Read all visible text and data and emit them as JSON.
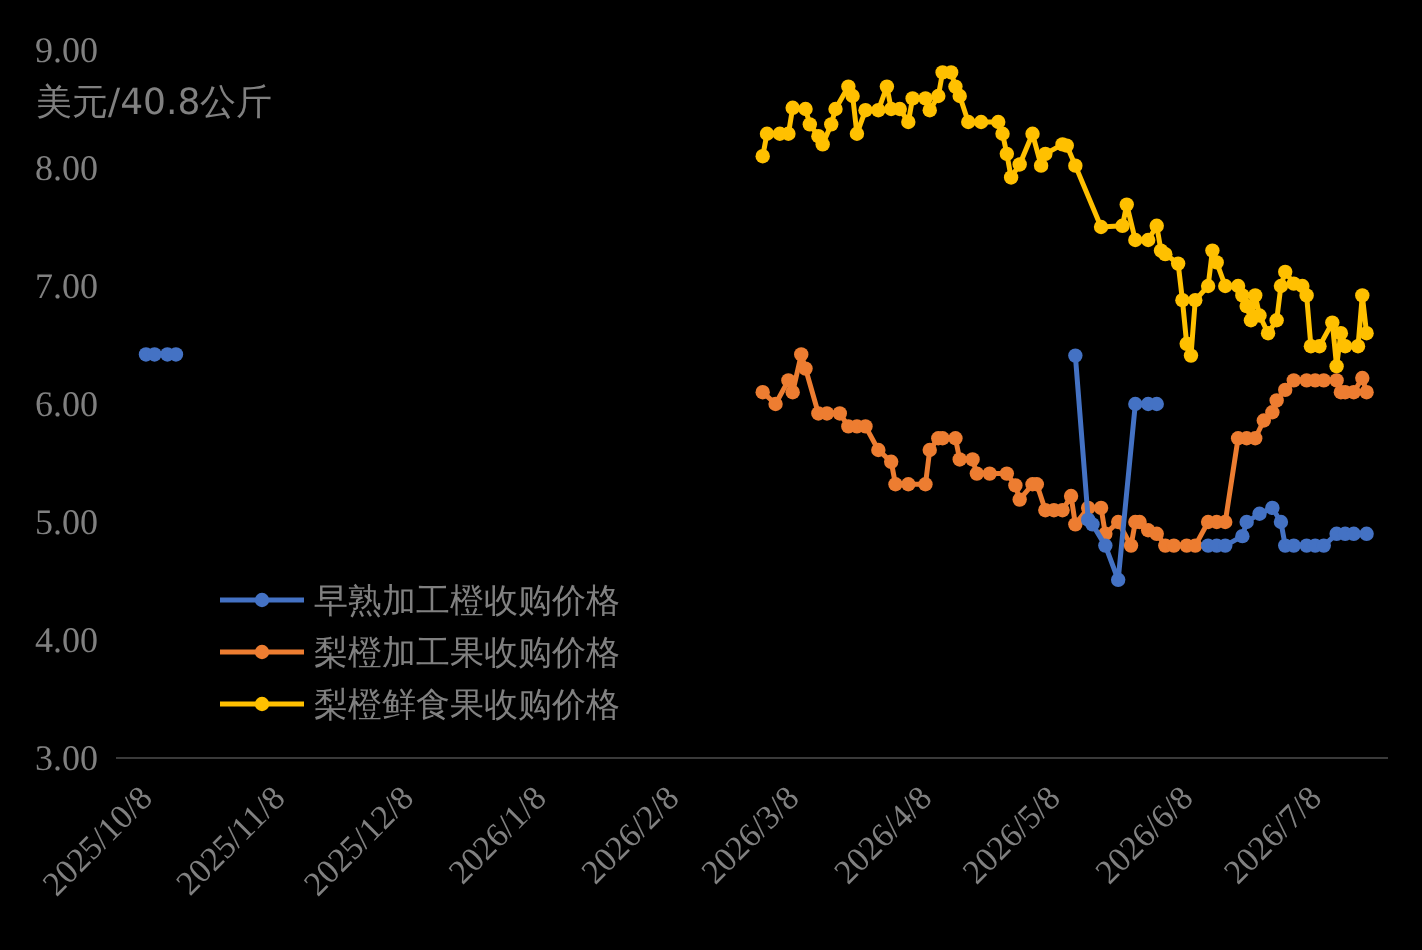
{
  "chart_data": {
    "type": "line",
    "ylabel": "美元/40.8公斤",
    "marker": "circle",
    "legend": "bottom left",
    "xlim": [
      "2025-10-01",
      "2026-07-25"
    ],
    "xticks": [
      {
        "value": "2025-10-08",
        "label": "2025/10/8"
      },
      {
        "value": "2025-11-08",
        "label": "2025/11/8"
      },
      {
        "value": "2025-12-08",
        "label": "2025/12/8"
      },
      {
        "value": "2026-01-08",
        "label": "2026/1/8"
      },
      {
        "value": "2026-02-08",
        "label": "2026/2/8"
      },
      {
        "value": "2026-03-08",
        "label": "2026/3/8"
      },
      {
        "value": "2026-04-08",
        "label": "2026/4/8"
      },
      {
        "value": "2026-05-08",
        "label": "2026/5/8"
      },
      {
        "value": "2026-06-08",
        "label": "2026/6/8"
      },
      {
        "value": "2026-07-08",
        "label": "2026/7/8"
      }
    ],
    "ylim": [
      3,
      9
    ],
    "yticks": [
      {
        "value": 3,
        "label": "3.00"
      },
      {
        "value": 4,
        "label": "4.00"
      },
      {
        "value": 5,
        "label": "5.00"
      },
      {
        "value": 6,
        "label": "6.00"
      },
      {
        "value": 7,
        "label": "7.00"
      },
      {
        "value": 8,
        "label": "8.00"
      },
      {
        "value": 9,
        "label": "9.00"
      }
    ],
    "series": [
      {
        "name": "早熟加工橙收购价格",
        "color": "#4472c4",
        "x": [
          "2025-10-08",
          "2025-10-10",
          "2025-10-13",
          "2025-10-15",
          null,
          "2026-05-13",
          "2026-05-16",
          "2026-05-17",
          "2026-05-20",
          "2026-05-23",
          "2026-05-27",
          "2026-05-30",
          "2026-06-01",
          null,
          "2026-06-13",
          "2026-06-15",
          "2026-06-17",
          "2026-06-21",
          "2026-06-22",
          "2026-06-25",
          "2026-06-28",
          "2026-06-30",
          "2026-07-01",
          "2026-07-03",
          "2026-07-06",
          "2026-07-08",
          "2026-07-10",
          "2026-07-13",
          "2026-07-15",
          "2026-07-17",
          "2026-07-20"
        ],
        "values": [
          6.42,
          6.42,
          6.42,
          6.42,
          null,
          6.41,
          5.02,
          4.98,
          4.8,
          4.51,
          6.0,
          6.0,
          6.0,
          null,
          4.8,
          4.8,
          4.8,
          4.88,
          5.0,
          5.07,
          5.12,
          5.0,
          4.8,
          4.8,
          4.8,
          4.8,
          4.8,
          4.9,
          4.9,
          4.9,
          4.9
        ]
      },
      {
        "name": "梨橙加工果收购价格",
        "color": "#ed7d31",
        "x": [
          "2026-03-01",
          "2026-03-04",
          "2026-03-07",
          "2026-03-08",
          "2026-03-10",
          "2026-03-11",
          "2026-03-14",
          "2026-03-16",
          "2026-03-19",
          "2026-03-21",
          "2026-03-23",
          "2026-03-25",
          "2026-03-28",
          "2026-03-31",
          "2026-04-01",
          "2026-04-04",
          "2026-04-08",
          "2026-04-09",
          "2026-04-11",
          "2026-04-12",
          "2026-04-15",
          "2026-04-16",
          "2026-04-19",
          "2026-04-20",
          "2026-04-23",
          "2026-04-27",
          "2026-04-29",
          "2026-04-30",
          "2026-05-03",
          "2026-05-04",
          "2026-05-06",
          "2026-05-08",
          "2026-05-10",
          "2026-05-12",
          "2026-05-13",
          "2026-05-16",
          "2026-05-19",
          "2026-05-20",
          "2026-05-23",
          "2026-05-26",
          "2026-05-27",
          "2026-05-28",
          "2026-05-30",
          "2026-06-01",
          "2026-06-03",
          "2026-06-05",
          "2026-06-08",
          "2026-06-10",
          "2026-06-13",
          "2026-06-15",
          "2026-06-17",
          "2026-06-20",
          "2026-06-22",
          "2026-06-24",
          "2026-06-26",
          "2026-06-28",
          "2026-06-29",
          "2026-07-01",
          "2026-07-03",
          "2026-07-06",
          "2026-07-08",
          "2026-07-10",
          "2026-07-13",
          "2026-07-14",
          "2026-07-15",
          "2026-07-17",
          "2026-07-19",
          "2026-07-20"
        ],
        "values": [
          6.1,
          6.0,
          6.2,
          6.1,
          6.42,
          6.3,
          5.92,
          5.92,
          5.92,
          5.81,
          5.81,
          5.81,
          5.61,
          5.51,
          5.32,
          5.32,
          5.32,
          5.61,
          5.71,
          5.71,
          5.71,
          5.53,
          5.53,
          5.41,
          5.41,
          5.41,
          5.31,
          5.19,
          5.32,
          5.32,
          5.1,
          5.1,
          5.1,
          5.22,
          4.98,
          5.12,
          5.12,
          4.9,
          5.0,
          4.8,
          5.0,
          5.0,
          4.93,
          4.9,
          4.8,
          4.8,
          4.8,
          4.8,
          5.0,
          5.0,
          5.0,
          5.71,
          5.71,
          5.71,
          5.86,
          5.93,
          6.03,
          6.12,
          6.2,
          6.2,
          6.2,
          6.2,
          6.2,
          6.1,
          6.1,
          6.1,
          6.22,
          6.1
        ]
      },
      {
        "name": "梨橙鲜食果收购价格",
        "color": "#ffc000",
        "x": [
          "2026-03-01",
          "2026-03-02",
          "2026-03-05",
          "2026-03-07",
          "2026-03-08",
          "2026-03-11",
          "2026-03-12",
          "2026-03-14",
          "2026-03-15",
          "2026-03-17",
          "2026-03-18",
          "2026-03-21",
          "2026-03-22",
          "2026-03-23",
          "2026-03-25",
          "2026-03-28",
          "2026-03-30",
          "2026-03-31",
          "2026-04-02",
          "2026-04-04",
          "2026-04-05",
          "2026-04-08",
          "2026-04-09",
          "2026-04-11",
          "2026-04-12",
          "2026-04-14",
          "2026-04-15",
          "2026-04-16",
          "2026-04-18",
          "2026-04-21",
          "2026-04-25",
          "2026-04-26",
          "2026-04-27",
          "2026-04-28",
          "2026-04-30",
          "2026-05-03",
          "2026-05-05",
          "2026-05-06",
          "2026-05-10",
          "2026-05-11",
          "2026-05-13",
          "2026-05-19",
          "2026-05-24",
          "2026-05-25",
          "2026-05-27",
          "2026-05-30",
          "2026-06-01",
          "2026-06-02",
          "2026-06-03",
          "2026-06-06",
          "2026-06-07",
          "2026-06-08",
          "2026-06-09",
          "2026-06-10",
          "2026-06-13",
          "2026-06-14",
          "2026-06-15",
          "2026-06-17",
          "2026-06-20",
          "2026-06-21",
          "2026-06-22",
          "2026-06-23",
          "2026-06-24",
          "2026-06-25",
          "2026-06-27",
          "2026-06-29",
          "2026-06-30",
          "2026-07-01",
          "2026-07-03",
          "2026-07-05",
          "2026-07-06",
          "2026-07-07",
          "2026-07-09",
          "2026-07-12",
          "2026-07-13",
          "2026-07-14",
          "2026-07-15",
          "2026-07-18",
          "2026-07-19",
          "2026-07-20"
        ],
        "values": [
          8.1,
          8.29,
          8.29,
          8.29,
          8.51,
          8.5,
          8.37,
          8.27,
          8.2,
          8.37,
          8.5,
          8.69,
          8.61,
          8.29,
          8.49,
          8.49,
          8.69,
          8.5,
          8.5,
          8.39,
          8.59,
          8.59,
          8.49,
          8.61,
          8.81,
          8.81,
          8.69,
          8.61,
          8.39,
          8.39,
          8.39,
          8.29,
          8.12,
          7.92,
          8.03,
          8.29,
          8.02,
          8.12,
          8.2,
          8.19,
          8.02,
          7.5,
          7.51,
          7.69,
          7.39,
          7.39,
          7.51,
          7.3,
          7.27,
          7.19,
          6.88,
          6.51,
          6.41,
          6.88,
          7.0,
          7.3,
          7.2,
          7.0,
          7.0,
          6.92,
          6.83,
          6.71,
          6.92,
          6.75,
          6.6,
          6.71,
          7.0,
          7.12,
          7.02,
          7.0,
          6.92,
          6.49,
          6.49,
          6.69,
          6.32,
          6.6,
          6.49,
          6.49,
          6.92,
          6.6
        ]
      }
    ]
  }
}
